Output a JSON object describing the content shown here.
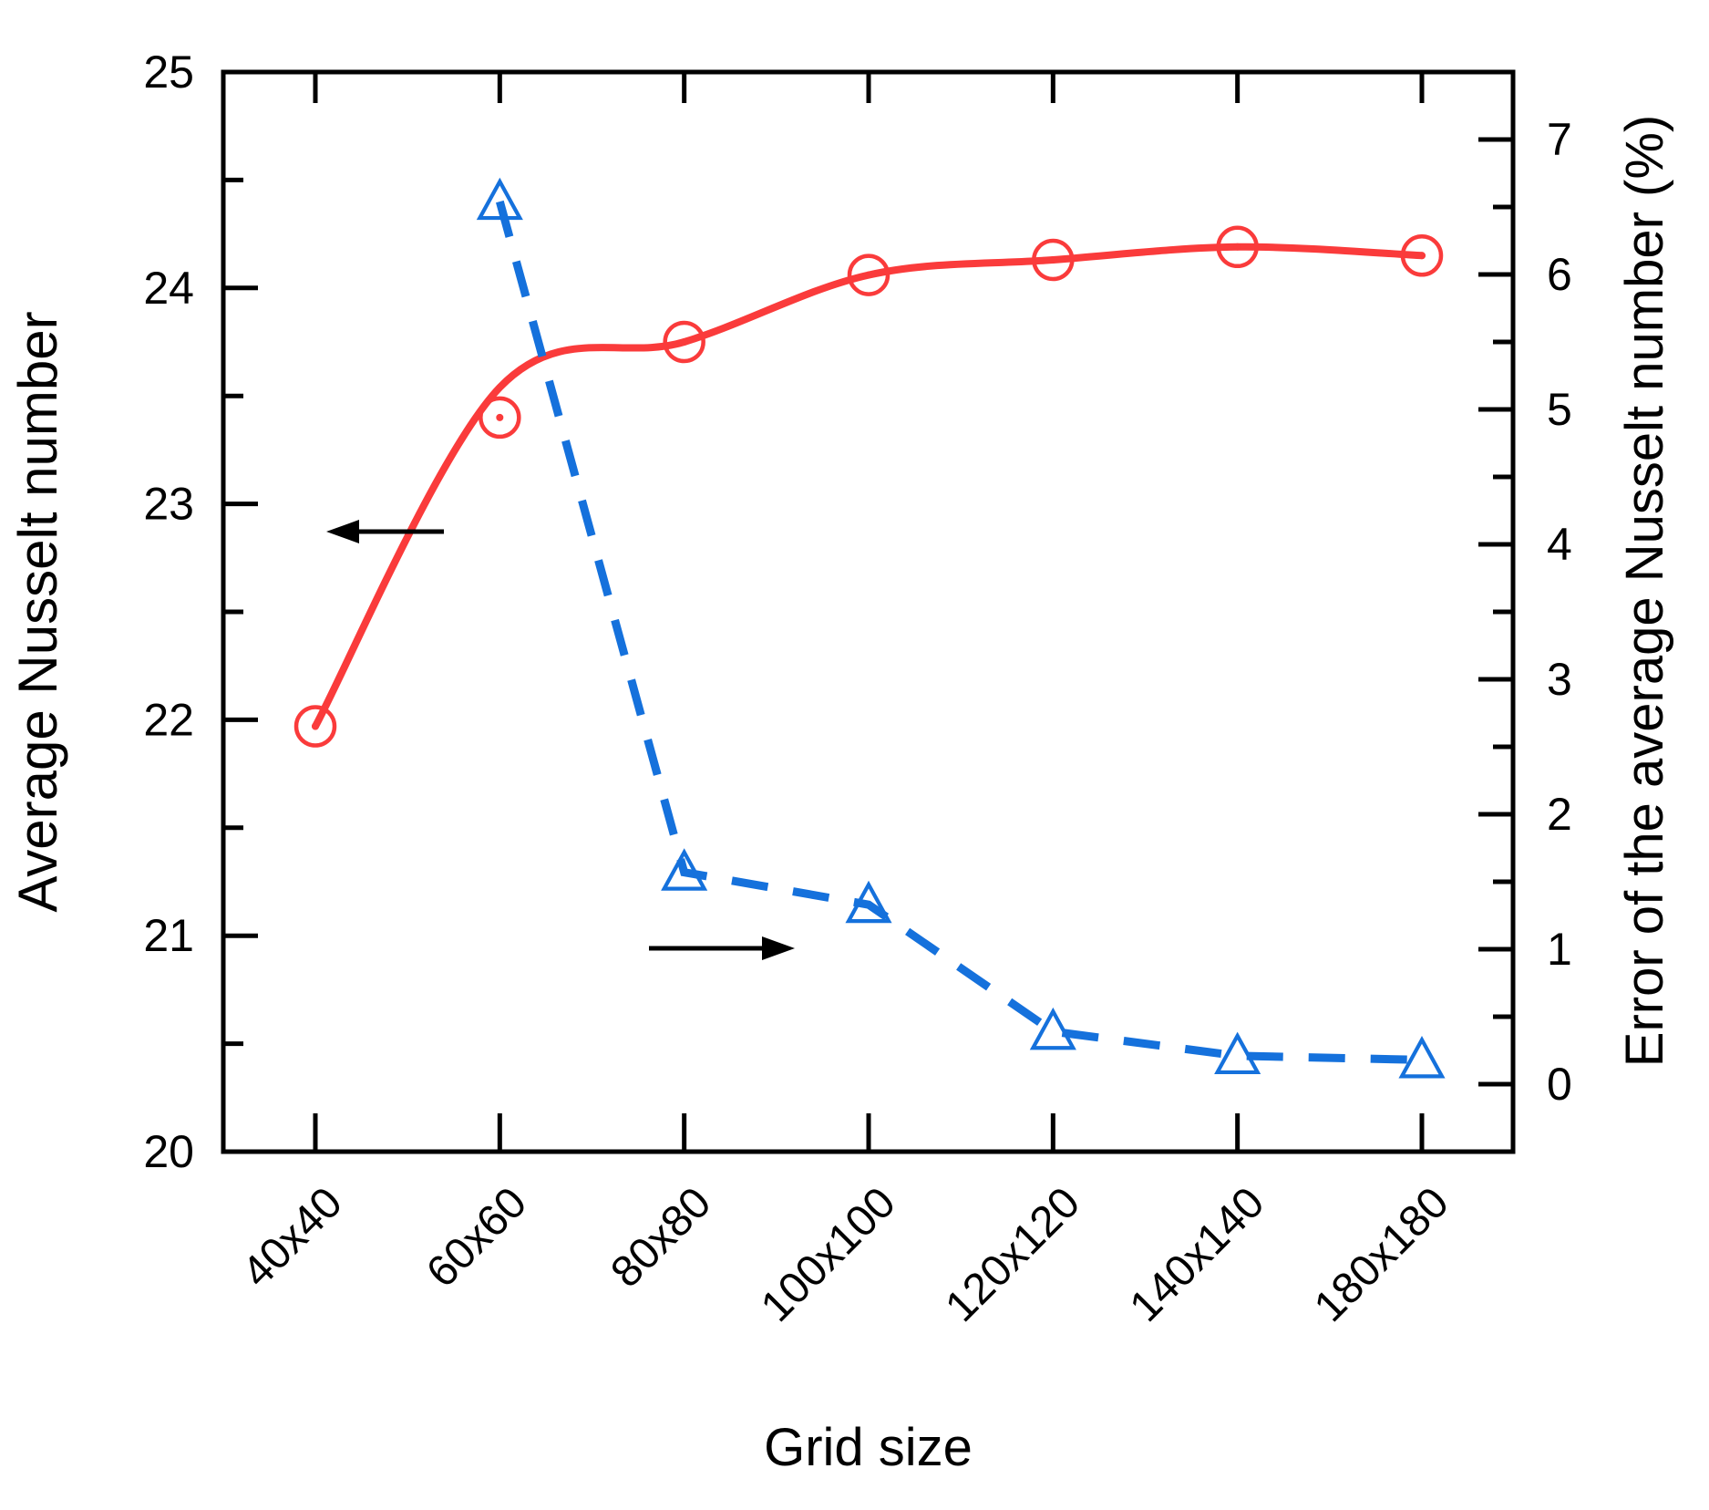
{
  "chart_data": {
    "type": "line",
    "title": "",
    "xlabel": "Grid size",
    "categories": [
      "40x40",
      "60x60",
      "80x80",
      "100x100",
      "120x120",
      "140x140",
      "180x180"
    ],
    "left_axis": {
      "label": "Average Nusselt number",
      "min": 20,
      "max": 25,
      "major_step": 1,
      "minor_step": 0.5,
      "tick_labels": [
        "20",
        "21",
        "22",
        "23",
        "24",
        "25"
      ]
    },
    "right_axis": {
      "label": "Error of the average Nusselt number (%)",
      "min": -0.5,
      "max": 7.5,
      "major_step": 1,
      "minor_step": 0.5,
      "tick_labels": [
        "0",
        "1",
        "2",
        "3",
        "4",
        "5",
        "6",
        "7"
      ]
    },
    "series": [
      {
        "name": "Average Nusselt number",
        "axis": "left",
        "line_style": "solid-smooth",
        "marker": "open-circle-with-center-dot",
        "color": "#FA3B3B",
        "categories": [
          "40x40",
          "60x60",
          "80x80",
          "100x100",
          "120x120",
          "140x140",
          "180x180"
        ],
        "values": [
          21.97,
          23.4,
          23.75,
          24.06,
          24.13,
          24.19,
          24.15
        ]
      },
      {
        "name": "Error of the average Nusselt number (%)",
        "axis": "right",
        "line_style": "dashed",
        "marker": "open-triangle",
        "color": "#1571DC",
        "categories": [
          "60x60",
          "80x80",
          "100x100",
          "120x120",
          "140x140",
          "180x180"
        ],
        "values": [
          6.54,
          1.57,
          1.33,
          0.39,
          0.21,
          0.18
        ]
      }
    ],
    "annotations": [
      {
        "name": "left-axis-arrow",
        "shape": "arrow",
        "direction": "left",
        "color": "#000000"
      },
      {
        "name": "right-axis-arrow",
        "shape": "arrow",
        "direction": "right",
        "color": "#000000"
      }
    ],
    "grid": "off",
    "legend": "none",
    "axis_color": "#000000",
    "background": "#FFFFFF"
  }
}
